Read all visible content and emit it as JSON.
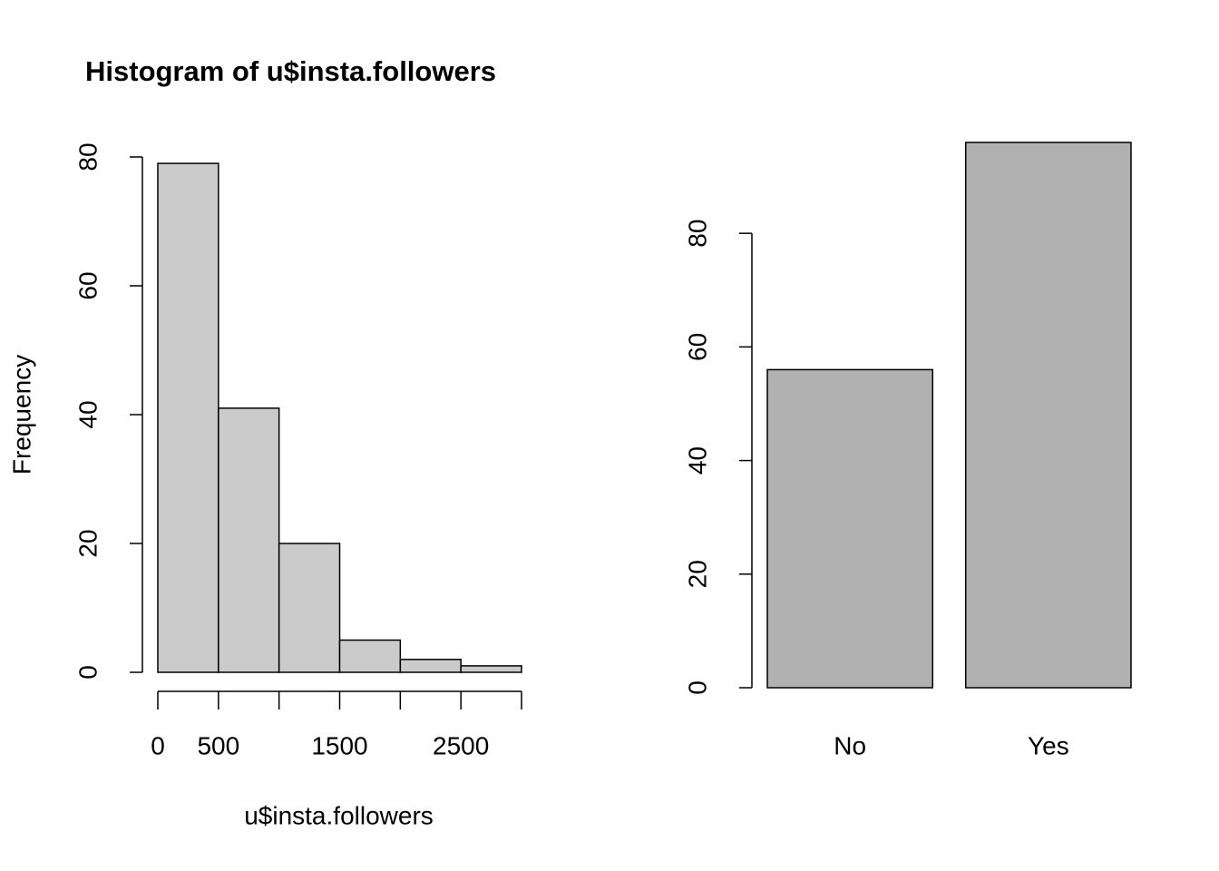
{
  "chart_data": [
    {
      "type": "histogram",
      "title": "Histogram of u$insta.followers",
      "x_label": "u$insta.followers",
      "y_label": "Frequency",
      "bins": [
        0,
        500,
        1000,
        1500,
        2000,
        2500,
        3000
      ],
      "values": [
        79,
        41,
        20,
        5,
        2,
        1
      ],
      "color": "#cbcbcb",
      "xlim": [
        0,
        3000
      ],
      "xticks": [
        0,
        500,
        {
          "value": 1000,
          "label": null
        },
        1500,
        {
          "value": 2000,
          "label": null
        },
        2500,
        {
          "value": 3000,
          "label": null
        }
      ],
      "ylim": [
        0,
        80
      ],
      "yticks": [
        0,
        20,
        40,
        60,
        80
      ]
    },
    {
      "type": "bar",
      "categories": [
        "No",
        "Yes"
      ],
      "values": [
        56,
        96
      ],
      "color": "#b1b1b1",
      "ylim": [
        0,
        96
      ],
      "yticks": [
        0,
        20,
        40,
        60,
        80
      ]
    }
  ]
}
